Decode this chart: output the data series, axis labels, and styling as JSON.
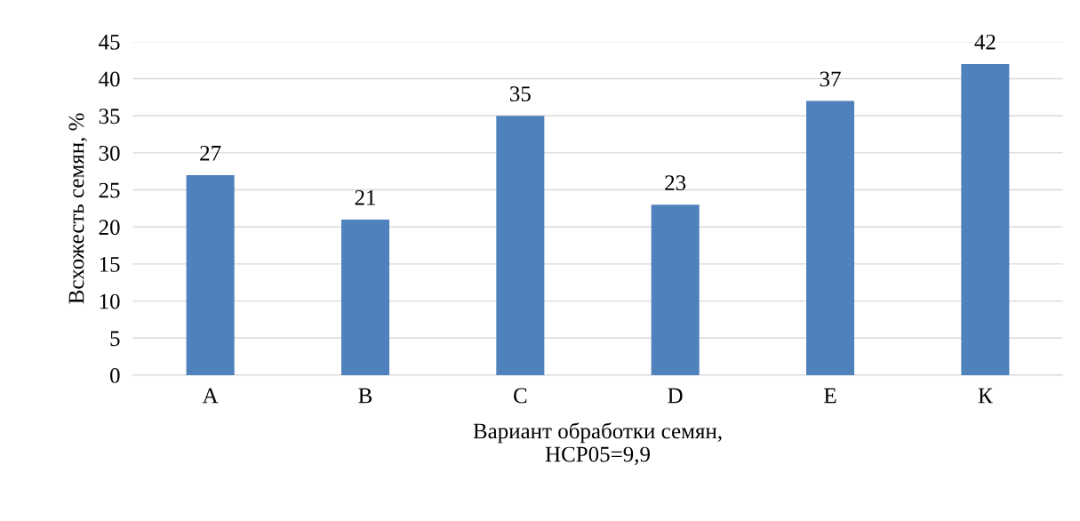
{
  "chart_data": {
    "type": "bar",
    "xlabel": "Вариант обработки семян,\nНСР05=9,9",
    "ylabel": "Всхожесть семян, %",
    "categories": [
      "A",
      "B",
      "C",
      "D",
      "E",
      "К"
    ],
    "values": [
      27,
      21,
      35,
      23,
      37,
      42
    ],
    "color": "#4f81bd",
    "ylim": [
      0,
      45
    ],
    "yticks": [
      0,
      5,
      10,
      15,
      20,
      25,
      30,
      35,
      40,
      45
    ],
    "grid": "y",
    "data_labels": true
  }
}
